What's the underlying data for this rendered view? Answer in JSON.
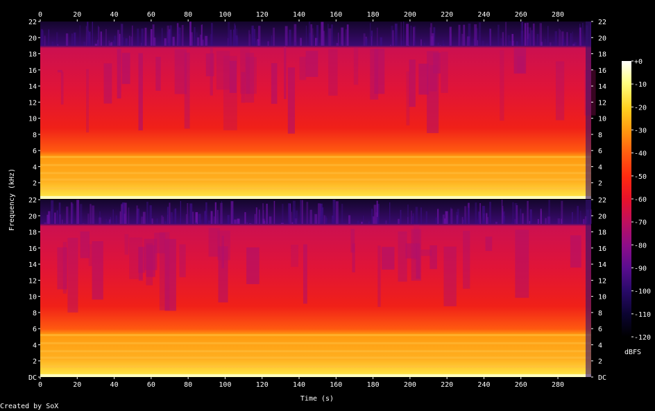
{
  "chart_data": {
    "type": "heatmap",
    "title": "",
    "xlabel": "Time (s)",
    "ylabel": "Frequency (kHz)",
    "xlim": [
      0,
      298
    ],
    "ylim": [
      0,
      22
    ],
    "x_ticks": [
      "0",
      "20",
      "40",
      "60",
      "80",
      "100",
      "120",
      "140",
      "160",
      "180",
      "200",
      "220",
      "240",
      "260",
      "280"
    ],
    "y_ticks_upper": [
      "2",
      "4",
      "6",
      "8",
      "10",
      "12",
      "14",
      "16",
      "18",
      "20",
      "22"
    ],
    "y_ticks_lower": [
      "DC",
      "2",
      "4",
      "6",
      "8",
      "10",
      "12",
      "14",
      "16",
      "18",
      "20",
      "22"
    ],
    "channels": 2,
    "bandwidth_cutoff_khz": 19,
    "colorbar": {
      "label": "dBFS",
      "ticks": [
        "+0",
        "-10",
        "-20",
        "-30",
        "-40",
        "-50",
        "-60",
        "-70",
        "-80",
        "-90",
        "-100",
        "-110",
        "-120"
      ],
      "range": [
        -120,
        0
      ]
    },
    "colors": {
      "background": "#000000",
      "text": "#ffffff",
      "scale": [
        "#000000",
        "#0b0430",
        "#2a0a6b",
        "#5a0d8f",
        "#8d0d8a",
        "#c0105c",
        "#e8122a",
        "#ff2a10",
        "#ff6010",
        "#ff9a10",
        "#ffd020",
        "#ffff80",
        "#ffffff"
      ]
    }
  },
  "footer": {
    "credit": "Created by SoX"
  }
}
